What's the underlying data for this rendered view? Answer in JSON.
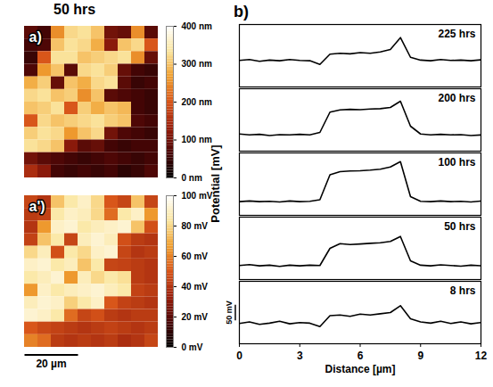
{
  "chart_data": [
    {
      "type": "heatmap",
      "title": "50 hrs",
      "annotations": [
        "a)"
      ],
      "tick_labels": false,
      "xlim": [
        0,
        50
      ],
      "ylim": [
        0,
        60
      ],
      "colorbar_range": [
        0,
        400
      ],
      "colorbar_ticks": [
        {
          "value": 400,
          "label": "400 nm"
        },
        {
          "value": 300,
          "label": "300 nm"
        },
        {
          "value": 200,
          "label": "200 nm"
        },
        {
          "value": 100,
          "label": "100 nm"
        },
        {
          "value": 0,
          "label": "0 nm"
        }
      ],
      "cells": [
        [
          80,
          60,
          250,
          320,
          330,
          300,
          100,
          90,
          250,
          80
        ],
        [
          60,
          70,
          300,
          330,
          320,
          280,
          120,
          300,
          320,
          200
        ],
        [
          50,
          200,
          330,
          330,
          300,
          310,
          320,
          330,
          250,
          90
        ],
        [
          70,
          260,
          300,
          80,
          320,
          330,
          310,
          90,
          60,
          50
        ],
        [
          280,
          310,
          90,
          300,
          280,
          320,
          330,
          80,
          50,
          60
        ],
        [
          320,
          330,
          300,
          310,
          250,
          300,
          80,
          70,
          60,
          50
        ],
        [
          300,
          310,
          330,
          200,
          310,
          280,
          300,
          290,
          60,
          50
        ],
        [
          200,
          320,
          300,
          310,
          320,
          330,
          310,
          300,
          70,
          60
        ],
        [
          310,
          330,
          320,
          260,
          300,
          320,
          100,
          70,
          60,
          50
        ],
        [
          330,
          320,
          300,
          120,
          80,
          90,
          60,
          50,
          60,
          60
        ],
        [
          100,
          80,
          70,
          60,
          50,
          60,
          70,
          60,
          50,
          60
        ],
        [
          150,
          120,
          60,
          50,
          60,
          50,
          60,
          40,
          50,
          70
        ]
      ]
    },
    {
      "type": "heatmap",
      "annotations": [
        "a')"
      ],
      "tick_labels": false,
      "xlim": [
        0,
        50
      ],
      "ylim": [
        0,
        60
      ],
      "colorbar_range": [
        0,
        100
      ],
      "colorbar_ticks": [
        {
          "value": 100,
          "label": "100 mV"
        },
        {
          "value": 80,
          "label": "80 mV"
        },
        {
          "value": 60,
          "label": "60 mV"
        },
        {
          "value": 40,
          "label": "40 mV"
        },
        {
          "value": 20,
          "label": "20 mV"
        },
        {
          "value": 0,
          "label": "0 mV"
        }
      ],
      "scale_bar": {
        "value": 20,
        "label": "20 µm"
      },
      "cells": [
        [
          45,
          40,
          75,
          85,
          90,
          80,
          50,
          45,
          75,
          45
        ],
        [
          42,
          44,
          85,
          90,
          88,
          80,
          55,
          85,
          90,
          65
        ],
        [
          40,
          65,
          90,
          92,
          85,
          88,
          90,
          92,
          75,
          48
        ],
        [
          44,
          75,
          85,
          45,
          88,
          92,
          88,
          48,
          42,
          40
        ],
        [
          80,
          88,
          48,
          85,
          80,
          90,
          92,
          45,
          40,
          42
        ],
        [
          90,
          92,
          85,
          88,
          75,
          85,
          45,
          44,
          42,
          40
        ],
        [
          85,
          88,
          92,
          65,
          88,
          80,
          85,
          82,
          42,
          40
        ],
        [
          65,
          90,
          85,
          88,
          90,
          92,
          88,
          85,
          44,
          42
        ],
        [
          88,
          92,
          90,
          78,
          85,
          90,
          50,
          44,
          42,
          40
        ],
        [
          92,
          90,
          85,
          55,
          45,
          48,
          42,
          40,
          42,
          42
        ],
        [
          50,
          46,
          44,
          42,
          40,
          42,
          44,
          42,
          40,
          42
        ],
        [
          60,
          55,
          42,
          40,
          42,
          40,
          42,
          38,
          40,
          45
        ]
      ]
    },
    {
      "type": "line",
      "annotations": [
        "b)"
      ],
      "x_label": "Distance [µm]",
      "y_label": "Potential [mV]",
      "tick_labels": "x",
      "grid": false,
      "color": "#000000",
      "xlim": [
        0,
        12
      ],
      "xticks": [
        0,
        3,
        6,
        9,
        12
      ],
      "ylim": [
        0,
        200
      ],
      "scale_bar": {
        "value": 50,
        "label": "50 mV"
      },
      "x": [
        0,
        0.5,
        1,
        1.5,
        2,
        2.5,
        3,
        3.5,
        4,
        4.5,
        5,
        5.5,
        6,
        6.5,
        7,
        7.5,
        8,
        8.5,
        9,
        9.5,
        10,
        10.5,
        11,
        11.5,
        12
      ],
      "series": [
        {
          "name": "225 hrs",
          "values": [
            85,
            88,
            82,
            86,
            84,
            88,
            85,
            84,
            72,
            105,
            108,
            106,
            110,
            108,
            112,
            120,
            158,
            95,
            86,
            84,
            88,
            85,
            86,
            84,
            87
          ]
        },
        {
          "name": "200 hrs",
          "values": [
            55,
            52,
            54,
            50,
            53,
            52,
            54,
            52,
            60,
            125,
            132,
            134,
            133,
            135,
            136,
            140,
            160,
            80,
            55,
            52,
            54,
            52,
            53,
            50,
            52
          ]
        },
        {
          "name": "100 hrs",
          "values": [
            44,
            46,
            44,
            45,
            43,
            46,
            44,
            45,
            50,
            130,
            140,
            142,
            143,
            145,
            148,
            155,
            172,
            60,
            45,
            44,
            46,
            44,
            45,
            43,
            46
          ]
        },
        {
          "name": "50 hrs",
          "values": [
            45,
            48,
            44,
            46,
            42,
            46,
            44,
            46,
            45,
            100,
            115,
            112,
            114,
            116,
            118,
            122,
            138,
            60,
            46,
            44,
            47,
            45,
            43,
            46,
            44
          ]
        },
        {
          "name": "8 hrs",
          "values": [
            65,
            70,
            62,
            66,
            72,
            64,
            68,
            66,
            55,
            90,
            92,
            88,
            95,
            92,
            96,
            100,
            122,
            80,
            70,
            66,
            72,
            65,
            70,
            64,
            68
          ]
        }
      ]
    }
  ]
}
